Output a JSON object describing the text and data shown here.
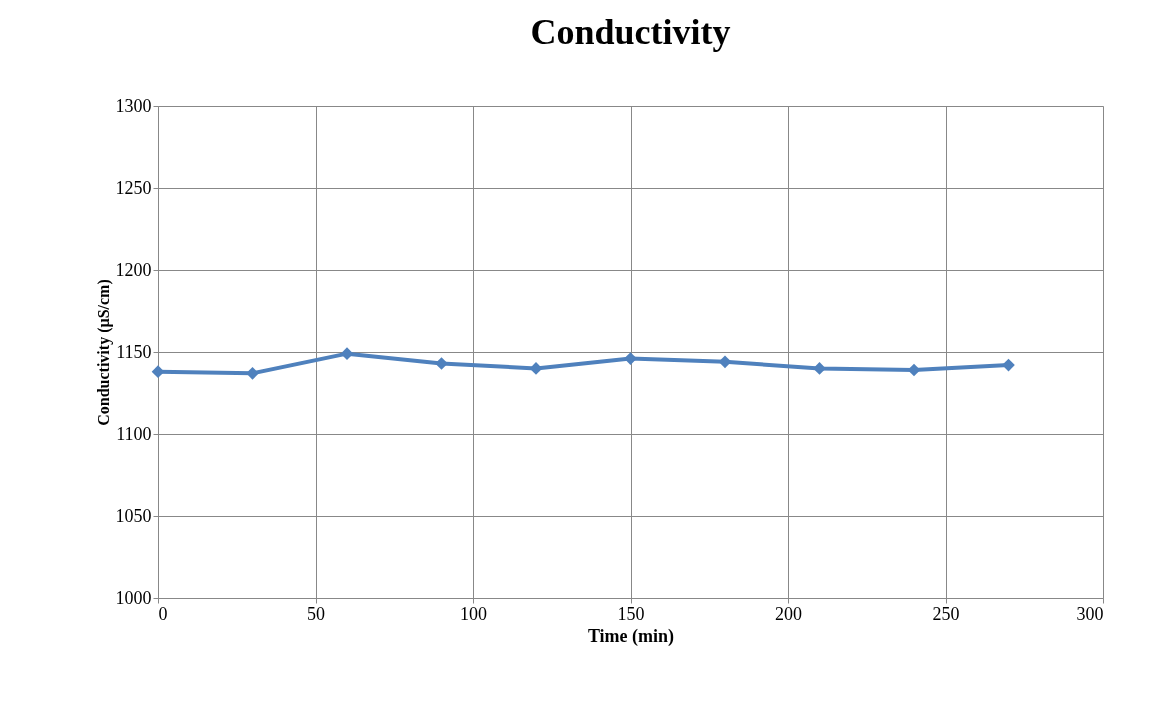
{
  "chart_data": {
    "type": "line",
    "title": "Conductivity",
    "xlabel": "Time (min)",
    "ylabel": "Conductivity (µS/cm)",
    "x": [
      0,
      30,
      60,
      90,
      120,
      150,
      180,
      210,
      240,
      270
    ],
    "series": [
      {
        "color": "#4f81bd",
        "values": [
          1138,
          1137,
          1149,
          1143,
          1140,
          1146,
          1144,
          1140,
          1139,
          1142
        ]
      }
    ],
    "xlim": [
      0,
      300
    ],
    "xticks": [
      0,
      50,
      100,
      150,
      200,
      250,
      300
    ],
    "ylim": [
      1000,
      1300
    ],
    "yticks": [
      1000,
      1050,
      1100,
      1150,
      1200,
      1250,
      1300
    ],
    "grid": true,
    "marker": "diamond",
    "line_style": "solid"
  }
}
